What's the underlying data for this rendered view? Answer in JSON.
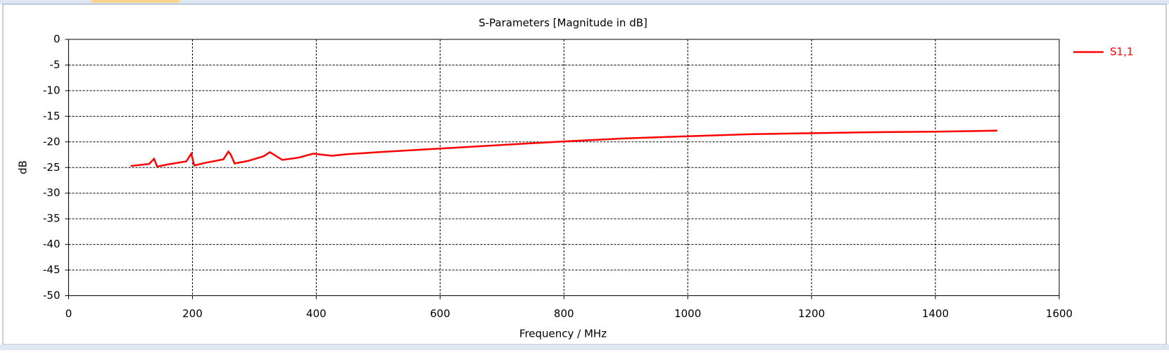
{
  "chart_data": {
    "type": "line",
    "title": "S-Parameters [Magnitude in dB]",
    "x_label": "Frequency / MHz",
    "y_label": "dB",
    "x": [
      100,
      130,
      138,
      143,
      160,
      190,
      198,
      203,
      220,
      250,
      258,
      262,
      268,
      290,
      315,
      325,
      333,
      345,
      370,
      395,
      410,
      425,
      450,
      500,
      600,
      700,
      800,
      900,
      1000,
      1100,
      1200,
      1300,
      1400,
      1500
    ],
    "series": [
      {
        "name": "S1,1",
        "color": "#ff0000",
        "values": [
          -24.7,
          -24.3,
          -23.3,
          -24.8,
          -24.4,
          -23.8,
          -22.3,
          -24.6,
          -24.1,
          -23.4,
          -21.9,
          -22.5,
          -24.2,
          -23.7,
          -22.8,
          -22.0,
          -22.6,
          -23.5,
          -23.1,
          -22.3,
          -22.5,
          -22.7,
          -22.4,
          -22.0,
          -21.3,
          -20.6,
          -19.9,
          -19.3,
          -18.9,
          -18.5,
          -18.3,
          -18.1,
          -18.0,
          -17.8
        ]
      }
    ],
    "xlim": [
      0,
      1600
    ],
    "xticks": [
      0,
      200,
      400,
      600,
      800,
      1000,
      1200,
      1400,
      1600
    ],
    "ylim": [
      -50,
      0
    ],
    "yticks": [
      0,
      -5,
      -10,
      -15,
      -20,
      -25,
      -30,
      -35,
      -40,
      -45,
      -50
    ],
    "grid": true,
    "legend": "right"
  }
}
